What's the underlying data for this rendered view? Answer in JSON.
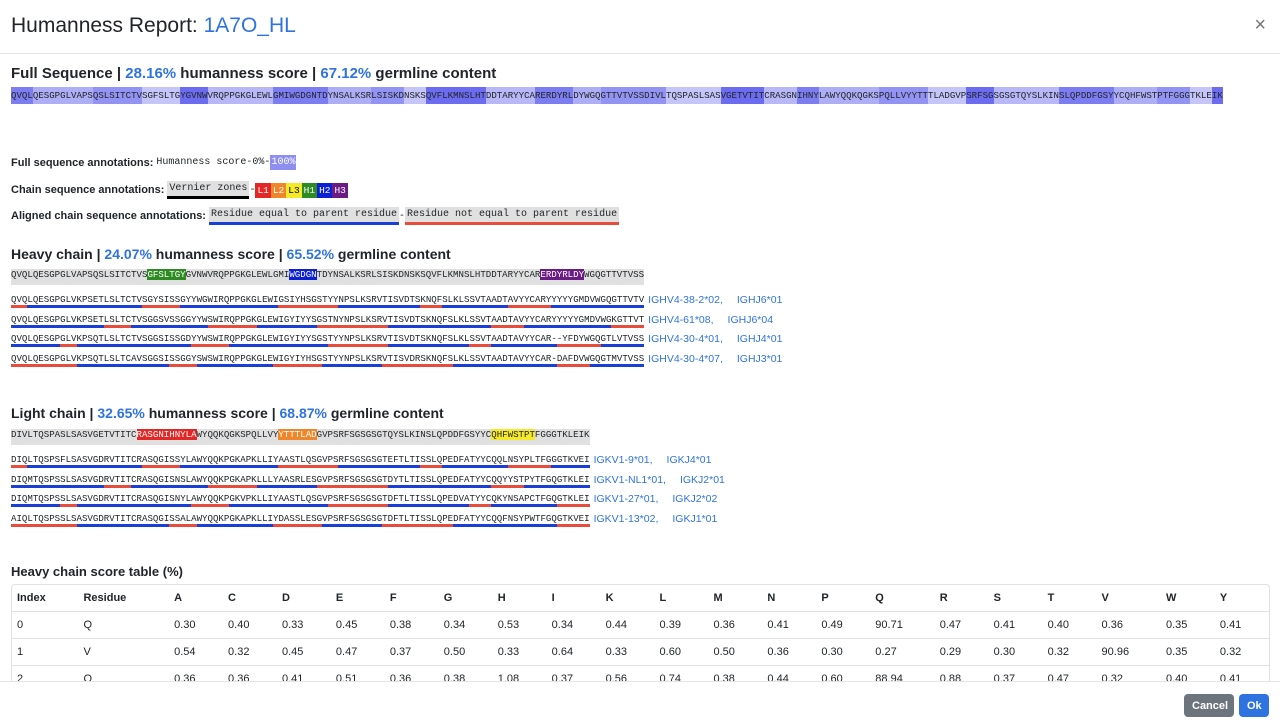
{
  "modal": {
    "title_prefix": "Humanness Report: ",
    "title_id": "1A7O_HL",
    "close_label": "×"
  },
  "full": {
    "heading": "Full Sequence",
    "sep": " | ",
    "humanness": "28.16%",
    "humanness_label": " humanness score ",
    "germline": "67.12%",
    "germline_label": " germline content",
    "sequence": "QVQLQESGPGLVAPSQSLSITCTVSGFSLTGYGVNWVRQPPGKGLEWLGMIWGDGNTDYNSALKSRLSISKDNSKSQVFLKMNSLHTDDTARYYCARERDYRLDYWGQGTTVTVSSDIVLTQSPASLSASVGETVTITCRASGNIHNYLAWYQQKQGKSPQLLVYYTTTLADGVPSRFSGSGSGTQYSLKINSLQPDDFGSYYCQHFWSTPTFGGGTKLEIK"
  },
  "annotations": {
    "full_label": "Full sequence annotations:",
    "full_value_a": "Humanness score-0%-",
    "full_value_b": "100%",
    "chain_label": "Chain sequence annotations:",
    "vernier": "Vernier zones",
    "dash": "-",
    "regions": [
      "L1",
      "L2",
      "L3",
      "H1",
      "H2",
      "H3"
    ],
    "region_colors": [
      "#e32626",
      "#f0862a",
      "#f5ea2a",
      "#2e8b22",
      "#0a1fd6",
      "#6a1b86"
    ],
    "aligned_label": "Aligned chain sequence annotations:",
    "equal": "Residue equal to parent residue",
    "not_equal": "Residue not equal to parent residue"
  },
  "heavy": {
    "heading": "Heavy chain",
    "humanness": "24.07%",
    "germline": "65.52%",
    "parent_a": "QVQLQESGPGLVAPSQSLSITCTVS",
    "cdr1": "GFSLTGY",
    "parent_b": "GVNWVRQPPGKGLEWLGMI",
    "cdr2": "WGDGN",
    "parent_c": "TDYNSALKSRLSISKDNSKSQVFLKMNSLHTDDTARYYCAR",
    "cdr3": "ERDYRLDY",
    "parent_d": "WGQGTTVTVSS",
    "germlines": [
      {
        "seq": "QVQLQESGPGLVKPSETLSLTCTVSGYSISSGYYWGWIRQPPGKGLEWIGSIYHSGSTYYNPSLKSRVTISVDTSKNQFSLKLSSVTAADTAVYYCARYYYYYGMDVWGQGTTVTV",
        "v": "IGHV4-38-2*02,",
        "j": "IGHJ6*01"
      },
      {
        "seq": "QVQLQESGPGLVKPSETLSLTCTVSGGSVSSGGYYWSWIRQPPGKGLEWIGYIYYSGSTNYNPSLKSRVTISVDTSKNQFSLKLSSVTAADTAVYYCARYYYYYGMDVWGKGTTVT",
        "v": "IGHV4-61*08,",
        "j": "IGHJ6*04"
      },
      {
        "seq": "QVQLQESGPGLVKPSQTLSLTCTVSGGSISSGDYYWSWIRQPPGKGLEWIGYIYYSGSTYYNPSLKSRVTISVDTSKNQFSLKLSSVTAADTAVYYCAR--YFDYWGQGTLVTVSS",
        "v": "IGHV4-30-4*01,",
        "j": "IGHJ4*01"
      },
      {
        "seq": "QVQLQESGPGLVKPSQTLSLTCAVSGGSISSGGYSWSWIRQPPGKGLEWIGYIYHSGSTYYNPSLKSRVTISVDRSKNQFSLKLSSVTAADTAVYYCAR-DAFDVWGQGTMVTVSS",
        "v": "IGHV4-30-4*07,",
        "j": "IGHJ3*01"
      }
    ]
  },
  "light": {
    "heading": "Light chain",
    "humanness": "32.65%",
    "germline": "68.87%",
    "parent_a": "DIVLTQSPASLSASVGETVTITC",
    "cdr1": "RASGNIHNYLA",
    "parent_b": "WYQQKQGKSPQLLVY",
    "cdr2": "YTTTLAD",
    "parent_c": "GVPSRFSGSGSGTQYSLKINSLQPDDFGSYYC",
    "cdr3": "QHFWSTPT",
    "parent_d": "FGGGTKLEIK",
    "germlines": [
      {
        "seq": "DIQLTQSPSFLSASVGDRVTITCRASQGISSYLAWYQQKPGKAPKLLIYAASTLQSGVPSRFSGSGSGTEFTLTISSLQPEDFATYYCQQLNSYPLTFGGGTKVEI",
        "v": "IGKV1-9*01,",
        "j": "IGKJ4*01"
      },
      {
        "seq": "DIQMTQSPSSLSASVGDRVTITCRASQGISNSLAWYQQKPGKAPKLLLYAASRLESGVPSRFSGSGSGTDYTLTISSLQPEDFATYYCQQYYSTPYTFGQGTKLEI",
        "v": "IGKV1-NL1*01,",
        "j": "IGKJ2*01"
      },
      {
        "seq": "DIQMTQSPSSLSASVGDRVTITCRASQGISNYLAWYQQKPGKVPKLLIYAASTLQSGVPSRFSGSGSGTDFTLTISSLQPEDVATYYCQKYNSAPCTFGQGTKLEI",
        "v": "IGKV1-27*01,",
        "j": "IGKJ2*02"
      },
      {
        "seq": "AIQLTQSPSSLSASVGDRVTITCRASQGISSALAWYQQKPGKAPKLLIYDASSLESGVPSRFSGSGSGTDFTLTISSLQPEDFATYYCQQFNSYPWTFGQGTKVEI",
        "v": "IGKV1-13*02,",
        "j": "IGKJ1*01"
      }
    ]
  },
  "table": {
    "heading": "Heavy chain score table (%)",
    "columns": [
      "Index",
      "Residue",
      "A",
      "C",
      "D",
      "E",
      "F",
      "G",
      "H",
      "I",
      "K",
      "L",
      "M",
      "N",
      "P",
      "Q",
      "R",
      "S",
      "T",
      "V",
      "W",
      "Y"
    ],
    "rows": [
      [
        "0",
        "Q",
        "0.30",
        "0.40",
        "0.33",
        "0.45",
        "0.38",
        "0.34",
        "0.53",
        "0.34",
        "0.44",
        "0.39",
        "0.36",
        "0.41",
        "0.49",
        "90.71",
        "0.47",
        "0.41",
        "0.40",
        "0.36",
        "0.35",
        "0.41"
      ],
      [
        "1",
        "V",
        "0.54",
        "0.32",
        "0.45",
        "0.47",
        "0.37",
        "0.50",
        "0.33",
        "0.64",
        "0.33",
        "0.60",
        "0.50",
        "0.36",
        "0.30",
        "0.27",
        "0.29",
        "0.30",
        "0.32",
        "90.96",
        "0.35",
        "0.32"
      ],
      [
        "2",
        "Q",
        "0.36",
        "0.36",
        "0.41",
        "0.51",
        "0.36",
        "0.38",
        "1.08",
        "0.37",
        "0.56",
        "0.74",
        "0.38",
        "0.44",
        "0.60",
        "88.94",
        "0.88",
        "0.37",
        "0.47",
        "0.32",
        "0.40",
        "0.41"
      ]
    ]
  },
  "footer": {
    "cancel": "Cancel",
    "ok": "Ok"
  }
}
